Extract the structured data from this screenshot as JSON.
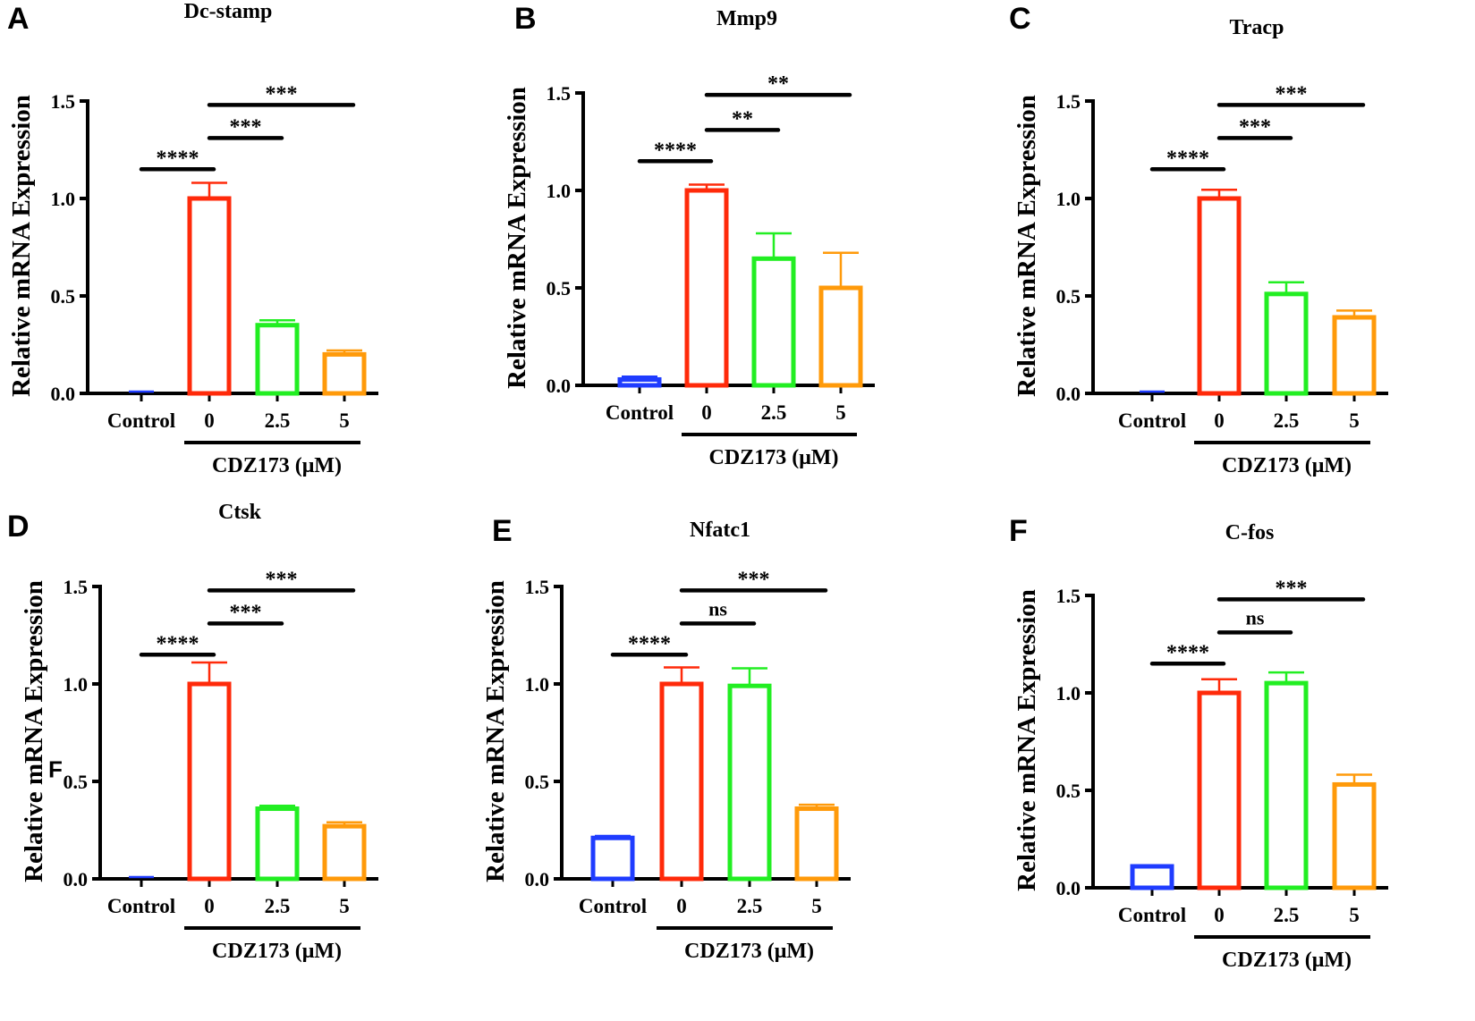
{
  "chart_data": [
    {
      "panel": "A",
      "type": "bar",
      "title": "Dc-stamp",
      "ylabel": "Relative mRNA Expression",
      "xlabel": "CDZ173 (μM)",
      "ylim": [
        0,
        1.5
      ],
      "yticks": [
        "0.0",
        "0.5",
        "1.0",
        "1.5"
      ],
      "categories": [
        "Control",
        "0",
        "2.5",
        "5"
      ],
      "values": [
        0,
        1.0,
        0.35,
        0.2
      ],
      "errors": [
        0,
        0.08,
        0.025,
        0.02
      ],
      "significance": [
        {
          "from": 0,
          "to": 1,
          "label": "****",
          "y": 1.15
        },
        {
          "from": 1,
          "to": 2,
          "label": "***",
          "y": 1.31
        },
        {
          "from": 1,
          "to": 3,
          "label": "***",
          "y": 1.48
        }
      ]
    },
    {
      "panel": "B",
      "type": "bar",
      "title": "Mmp9",
      "ylabel": "Relative mRNA Expression",
      "xlabel": "CDZ173 (μM)",
      "ylim": [
        0,
        1.5
      ],
      "yticks": [
        "0.0",
        "0.5",
        "1.0",
        "1.5"
      ],
      "categories": [
        "Control",
        "0",
        "2.5",
        "5"
      ],
      "values": [
        0.03,
        1.0,
        0.65,
        0.5
      ],
      "errors": [
        0.015,
        0.03,
        0.13,
        0.18
      ],
      "significance": [
        {
          "from": 0,
          "to": 1,
          "label": "****",
          "y": 1.15
        },
        {
          "from": 1,
          "to": 2,
          "label": "**",
          "y": 1.31
        },
        {
          "from": 1,
          "to": 3,
          "label": "**",
          "y": 1.49
        }
      ]
    },
    {
      "panel": "C",
      "type": "bar",
      "title": "Tracp",
      "ylabel": "Relative mRNA Expression",
      "xlabel": "CDZ173 (μM)",
      "ylim": [
        0,
        1.5
      ],
      "yticks": [
        "0.0",
        "0.5",
        "1.0",
        "1.5"
      ],
      "categories": [
        "Control",
        "0",
        "2.5",
        "5"
      ],
      "values": [
        0,
        1.0,
        0.51,
        0.39
      ],
      "errors": [
        0,
        0.045,
        0.06,
        0.035
      ],
      "significance": [
        {
          "from": 0,
          "to": 1,
          "label": "****",
          "y": 1.15
        },
        {
          "from": 1,
          "to": 2,
          "label": "***",
          "y": 1.31
        },
        {
          "from": 1,
          "to": 3,
          "label": "***",
          "y": 1.48
        }
      ]
    },
    {
      "panel": "D",
      "type": "bar",
      "title": "Ctsk",
      "ylabel": "Relative mRNA Expression",
      "xlabel": "CDZ173 (μM)",
      "ylim": [
        0,
        1.5
      ],
      "yticks": [
        "0.0",
        "0.5",
        "1.0",
        "1.5"
      ],
      "categories": [
        "Control",
        "0",
        "2.5",
        "5"
      ],
      "values": [
        0,
        1.0,
        0.36,
        0.27
      ],
      "errors": [
        0,
        0.11,
        0.015,
        0.02
      ],
      "significance": [
        {
          "from": 0,
          "to": 1,
          "label": "****",
          "y": 1.15
        },
        {
          "from": 1,
          "to": 2,
          "label": "***",
          "y": 1.31
        },
        {
          "from": 1,
          "to": 3,
          "label": "***",
          "y": 1.48
        }
      ],
      "stray_label": "F"
    },
    {
      "panel": "E",
      "type": "bar",
      "title": "Nfatc1",
      "ylabel": "Relative mRNA Expression",
      "xlabel": "CDZ173 (μM)",
      "ylim": [
        0,
        1.5
      ],
      "yticks": [
        "0.0",
        "0.5",
        "1.0",
        "1.5"
      ],
      "categories": [
        "Control",
        "0",
        "2.5",
        "5"
      ],
      "values": [
        0.21,
        1.0,
        0.99,
        0.36
      ],
      "errors": [
        0.01,
        0.085,
        0.09,
        0.02
      ],
      "significance": [
        {
          "from": 0,
          "to": 1,
          "label": "****",
          "y": 1.15
        },
        {
          "from": 1,
          "to": 2,
          "label": "ns",
          "y": 1.31
        },
        {
          "from": 1,
          "to": 3,
          "label": "***",
          "y": 1.48
        }
      ]
    },
    {
      "panel": "F",
      "type": "bar",
      "title": "C-fos",
      "ylabel": "Relative mRNA Expression",
      "xlabel": "CDZ173 (μM)",
      "ylim": [
        0,
        1.5
      ],
      "yticks": [
        "0.0",
        "0.5",
        "1.0",
        "1.5"
      ],
      "categories": [
        "Control",
        "0",
        "2.5",
        "5"
      ],
      "values": [
        0.11,
        1.0,
        1.05,
        0.53
      ],
      "errors": [
        0.005,
        0.07,
        0.055,
        0.05
      ],
      "significance": [
        {
          "from": 0,
          "to": 1,
          "label": "****",
          "y": 1.15
        },
        {
          "from": 1,
          "to": 2,
          "label": "ns",
          "y": 1.31
        },
        {
          "from": 1,
          "to": 3,
          "label": "***",
          "y": 1.48
        }
      ]
    }
  ],
  "colors": [
    "#1f3cff",
    "#ff2a0a",
    "#22ee22",
    "#ff9a0a"
  ]
}
